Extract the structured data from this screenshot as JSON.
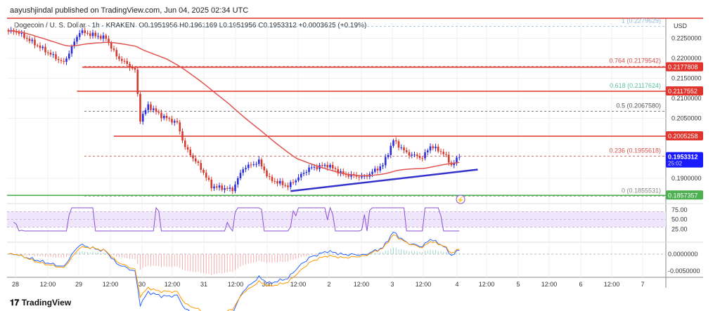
{
  "header": {
    "publisher": "aayushjindal published on TradingView.com, Jun 04, 2025 02:34 UTC",
    "symbol": "Dogecoin / U. S. Dollar · 1h · KRAKEN",
    "ohlc": "O0.1951956  H0.1961169  L0.1951956  C0.1953312  +0.0003625 (+0.19%)"
  },
  "footer": {
    "logo": "TradingView"
  },
  "colors": {
    "up": "#2a2ee0",
    "down": "#d63a2e",
    "ma": "#e05550",
    "level": "#e0342c",
    "support": "#4caf50",
    "trend": "#3333cc",
    "rsi": "#8a4fd6"
  },
  "chart_data": {
    "type": "candlestick",
    "currency": "USD",
    "ylim": [
      0.1835,
      0.2295
    ],
    "y_ticks": [
      "0.2250000",
      "0.2200000",
      "0.2150000",
      "0.2100000",
      "0.2050000",
      "0.1900000"
    ],
    "x_ticks": [
      "28",
      "12:00",
      "29",
      "12:00",
      "30",
      "12:00",
      "31",
      "12:00",
      "Jun",
      "12:00",
      "2",
      "12:00",
      "3",
      "12:00",
      "4",
      "12:00",
      "5",
      "12:00",
      "6",
      "12:00",
      "7"
    ],
    "close_path": [
      [
        0,
        0.2267
      ],
      [
        3,
        0.2267
      ],
      [
        13,
        0.2223
      ],
      [
        21,
        0.2188
      ],
      [
        27,
        0.2267
      ],
      [
        37,
        0.225
      ],
      [
        41,
        0.2205
      ],
      [
        48,
        0.217
      ],
      [
        50,
        0.2047
      ],
      [
        53,
        0.2082
      ],
      [
        58,
        0.2056
      ],
      [
        64,
        0.2038
      ],
      [
        67,
        0.1977
      ],
      [
        73,
        0.1925
      ],
      [
        77,
        0.188
      ],
      [
        85,
        0.1872
      ],
      [
        89,
        0.1925
      ],
      [
        95,
        0.1942
      ],
      [
        99,
        0.1898
      ],
      [
        106,
        0.188
      ],
      [
        114,
        0.1925
      ],
      [
        121,
        0.1933
      ],
      [
        127,
        0.191
      ],
      [
        135,
        0.1903
      ],
      [
        142,
        0.1933
      ],
      [
        146,
        0.1995
      ],
      [
        151,
        0.1963
      ],
      [
        157,
        0.1951
      ],
      [
        160,
        0.1981
      ],
      [
        165,
        0.1963
      ],
      [
        168,
        0.1933
      ],
      [
        171,
        0.1953
      ]
    ],
    "levels": [
      {
        "price": 0.2177808,
        "label": "0.2177808",
        "from_hour": 28
      },
      {
        "price": 0.2117552,
        "label": "0.2117552",
        "from_hour": 26
      },
      {
        "price": 0.2005258,
        "label": "0.2005258",
        "from_hour": 40
      }
    ],
    "support": {
      "price": 0.1857357,
      "label": "0.1857357"
    },
    "last_price": {
      "label": "0.1953312",
      "countdown": "25:02"
    },
    "fib": [
      {
        "ratio": "1",
        "label": "1 (0.2279629)",
        "price": 0.2279629,
        "color": "#8fb8d8"
      },
      {
        "ratio": "0.764",
        "label": "0.764 (0.2179542)",
        "price": 0.2179542,
        "color": "#d0504a"
      },
      {
        "ratio": "0.618",
        "label": "0.618 (0.2117624)",
        "price": 0.2117624,
        "color": "#5cc0a0"
      },
      {
        "ratio": "0.5",
        "label": "0.5 (0.2067580)",
        "price": 0.206758,
        "color": "#555"
      },
      {
        "ratio": "0.236",
        "label": "0.236 (0.1955618)",
        "price": 0.1955618,
        "color": "#d0504a"
      },
      {
        "ratio": "0",
        "label": "0 (0.1855531)",
        "price": 0.1855531,
        "color": "#888"
      }
    ],
    "trendline": [
      [
        107,
        0.1868
      ],
      [
        178,
        0.1922
      ]
    ],
    "rsi": {
      "ticks": [
        "75.00",
        "50.00",
        "25.00"
      ],
      "band": [
        30,
        70
      ]
    },
    "macd": {
      "ticks": [
        "0.0000000",
        "-0.0050000"
      ]
    }
  }
}
